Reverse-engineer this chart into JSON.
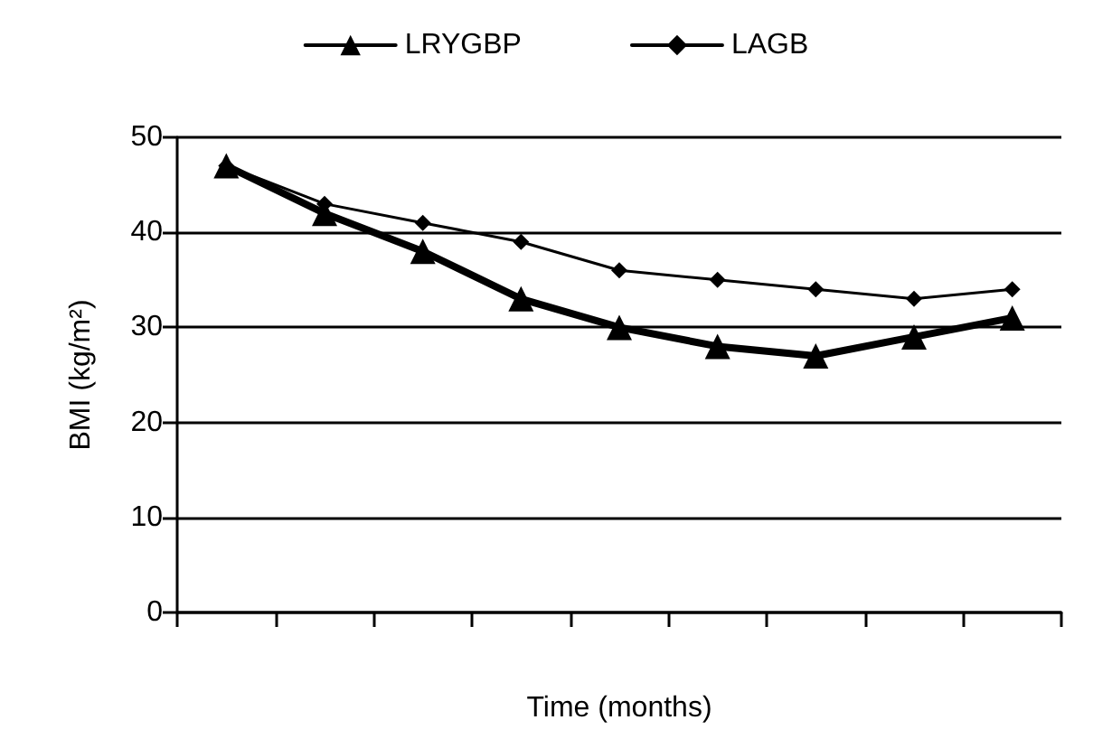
{
  "chart_data": {
    "type": "line",
    "xlabel": "Time (months)",
    "ylabel": "BMI (kg/m²)",
    "categories": [
      null,
      null,
      null,
      null,
      null,
      null,
      null,
      null,
      null
    ],
    "series": [
      {
        "name": "LRYGBP",
        "color": "#000000",
        "marker": "triangle",
        "values": [
          47,
          42,
          38,
          33,
          30,
          28,
          27,
          29,
          31
        ]
      },
      {
        "name": "LAGB",
        "color": "#000000",
        "marker": "diamond",
        "values": [
          47,
          43,
          41,
          39,
          36,
          35,
          34,
          33,
          34
        ]
      }
    ],
    "ylim": [
      0,
      50
    ],
    "yticks": [
      0,
      10,
      20,
      30,
      40,
      50
    ],
    "grid": "y",
    "legend": "top",
    "line_style": "solid",
    "tick_labels": "y"
  }
}
